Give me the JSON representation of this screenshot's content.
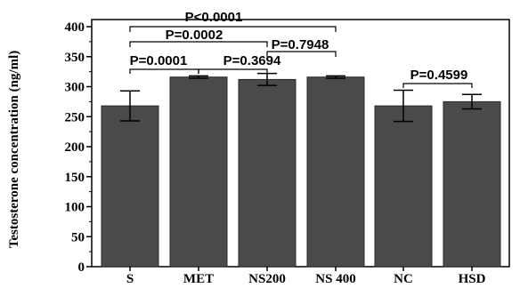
{
  "chart_data": {
    "type": "bar",
    "ylabel": "Testosterone concentration (ng/ml)",
    "xlabel": "",
    "categories": [
      "S",
      "MET",
      "NS200",
      "NS 400",
      "NC",
      "HSD"
    ],
    "values": [
      268,
      316,
      312,
      316,
      268,
      275
    ],
    "errors": [
      25,
      2,
      10,
      2,
      26,
      12
    ],
    "ylim": [
      0,
      400
    ],
    "yticks": [
      0,
      50,
      100,
      150,
      200,
      250,
      300,
      350,
      400
    ],
    "bar_color": "#4a4a4a",
    "annotations": [
      {
        "from": 0,
        "to": 1,
        "text": "P=0.0001"
      },
      {
        "from": 1,
        "to": 2,
        "text": "P=0.3694"
      },
      {
        "from": 0,
        "to": 2,
        "text": "P=0.0002"
      },
      {
        "from": 2,
        "to": 3,
        "text": "P=0.7948"
      },
      {
        "from": 0,
        "to": 3,
        "text": "P<0.0001"
      },
      {
        "from": 4,
        "to": 5,
        "text": "P=0.4599"
      }
    ]
  }
}
